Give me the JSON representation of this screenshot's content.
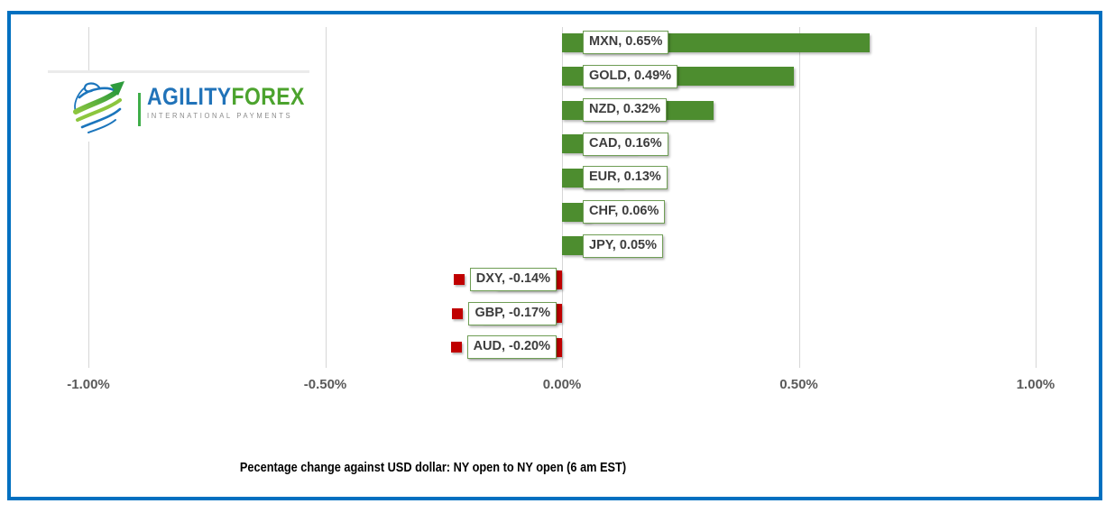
{
  "frame": {
    "color": "#0070c0"
  },
  "logo": {
    "brand_primary": "AGILITY",
    "brand_secondary": "FOREX",
    "tagline": "INTERNATIONAL PAYMENTS",
    "globe_icon": "globe-swoosh-arrow-icon",
    "colors": {
      "primary_blue": "#2173b9",
      "secondary_green": "#4ca32e",
      "tagline_gray": "#8c8c8c"
    }
  },
  "chart_data": {
    "type": "bar",
    "orientation": "horizontal",
    "title": "Pecentage change against USD dollar: NY open to NY open  (6 am EST)",
    "categories": [
      "MXN",
      "GOLD",
      "NZD",
      "CAD",
      "EUR",
      "CHF",
      "JPY",
      "DXY",
      "GBP",
      "AUD"
    ],
    "values": [
      0.65,
      0.49,
      0.32,
      0.16,
      0.13,
      0.06,
      0.05,
      -0.14,
      -0.17,
      -0.2
    ],
    "data_labels": [
      "MXN, 0.65%",
      "GOLD, 0.49%",
      "NZD, 0.32%",
      "CAD, 0.16%",
      "EUR, 0.13%",
      "CHF, 0.06%",
      "JPY, 0.05%",
      "DXY, -0.14%",
      "GBP, -0.17%",
      "AUD, -0.20%"
    ],
    "x_ticks": [
      {
        "value": -1.0,
        "label": "-1.00%"
      },
      {
        "value": -0.5,
        "label": "-0.50%"
      },
      {
        "value": 0.0,
        "label": "0.00%"
      },
      {
        "value": 0.5,
        "label": "0.50%"
      },
      {
        "value": 1.0,
        "label": "1.00%"
      }
    ],
    "xlim": [
      -1.17,
      1.13
    ],
    "grid": true,
    "legend": false,
    "label_style": "boxed-with-legend-key",
    "colors": {
      "positive": "#4d8d2f",
      "negative": "#c00000",
      "label_border": "#6f9e55",
      "label_text": "#3d3d3d",
      "gridline": "#d6d6d6",
      "axis_text": "#595959"
    }
  }
}
